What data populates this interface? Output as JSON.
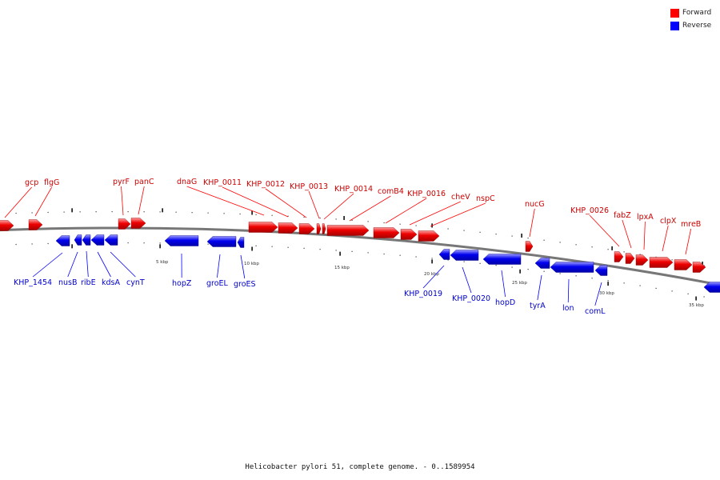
{
  "title": "Helicobacter pylori 51, complete genome. - 0..1589954",
  "legend": {
    "forward": {
      "label": "Forward",
      "color": "#ff0000"
    },
    "reverse": {
      "label": "Reverse",
      "color": "#0000ff"
    }
  },
  "colors": {
    "forward_label": "#cc0000",
    "reverse_label": "#0000cc",
    "backbone": "#777777"
  },
  "scale_labels": [
    "5 kbp",
    "10 kbp",
    "15 kbp",
    "20 kbp",
    "25 kbp",
    "30 kbp",
    "35 kbp"
  ],
  "forward_genes": [
    {
      "label": "gcp"
    },
    {
      "label": "flgG"
    },
    {
      "label": "pyrF"
    },
    {
      "label": "panC"
    },
    {
      "label": "dnaG"
    },
    {
      "label": "KHP_0011"
    },
    {
      "label": "KHP_0012"
    },
    {
      "label": "KHP_0013"
    },
    {
      "label": "KHP_0014"
    },
    {
      "label": "comB4"
    },
    {
      "label": "KHP_0016"
    },
    {
      "label": "cheV"
    },
    {
      "label": "nspC"
    },
    {
      "label": "nucG"
    },
    {
      "label": "KHP_0026"
    },
    {
      "label": "fabZ"
    },
    {
      "label": "lpxA"
    },
    {
      "label": "clpX"
    },
    {
      "label": "mreB"
    }
  ],
  "reverse_genes": [
    {
      "label": "KHP_1454"
    },
    {
      "label": "nusB"
    },
    {
      "label": "ribE"
    },
    {
      "label": "kdsA"
    },
    {
      "label": "cynT"
    },
    {
      "label": "hopZ"
    },
    {
      "label": "groEL"
    },
    {
      "label": "groES"
    },
    {
      "label": "KHP_0019"
    },
    {
      "label": "KHP_0020"
    },
    {
      "label": "hopD"
    },
    {
      "label": "tyrA"
    },
    {
      "label": "lon"
    },
    {
      "label": "comL"
    }
  ]
}
